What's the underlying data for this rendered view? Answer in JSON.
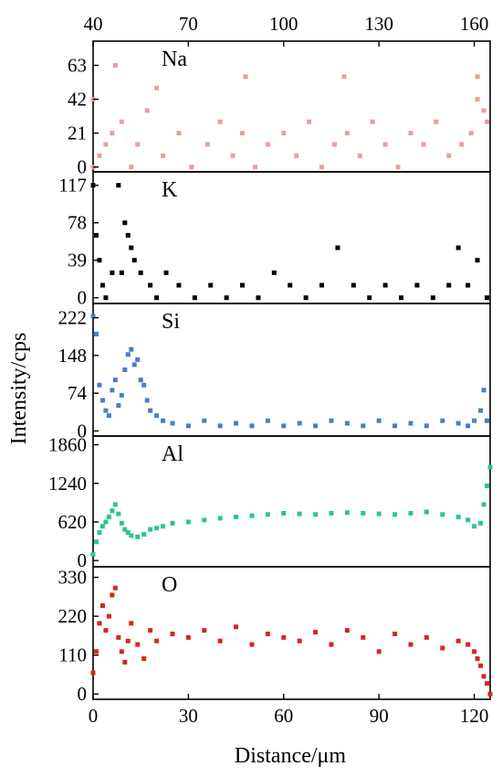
{
  "chart_data": {
    "type": "scatter",
    "title": "",
    "xlabel": "Distance/μm",
    "ylabel": "Intensity/cps",
    "xlim": [
      0,
      125
    ],
    "x_ticks": [
      "0",
      "30",
      "60",
      "90",
      "120"
    ],
    "top_axis_ticks": [
      "40",
      "70",
      "100",
      "130",
      "160"
    ],
    "panels": [
      {
        "label": "Na",
        "color": "#e8a09a",
        "ylim": [
          -3,
          78
        ],
        "y_ticks": [
          "0",
          "21",
          "42",
          "63"
        ],
        "x": [
          0,
          2,
          4,
          6,
          9,
          12,
          14,
          17,
          22,
          27,
          31,
          36,
          40,
          44,
          47,
          51,
          55,
          60,
          64,
          68,
          72,
          76,
          80,
          84,
          88,
          92,
          96,
          100,
          104,
          108,
          112,
          116,
          119,
          121,
          123,
          124,
          0,
          7,
          20,
          48,
          79,
          121
        ],
        "y": [
          0,
          7,
          14,
          21,
          28,
          0,
          14,
          35,
          7,
          21,
          0,
          14,
          28,
          7,
          21,
          0,
          14,
          21,
          7,
          28,
          0,
          14,
          21,
          7,
          28,
          14,
          0,
          21,
          14,
          28,
          7,
          14,
          21,
          42,
          35,
          28,
          42,
          63,
          49,
          56,
          56,
          56
        ]
      },
      {
        "label": "K",
        "color": "#000000",
        "ylim": [
          -6,
          131
        ],
        "y_ticks": [
          "0",
          "39",
          "78",
          "117"
        ],
        "x": [
          0,
          1,
          2,
          3,
          4,
          6,
          8,
          9,
          10,
          11,
          12,
          13,
          15,
          18,
          20,
          23,
          27,
          32,
          37,
          42,
          47,
          52,
          57,
          62,
          67,
          72,
          77,
          82,
          87,
          92,
          97,
          102,
          107,
          112,
          115,
          118,
          121,
          124
        ],
        "y": [
          117,
          65,
          39,
          13,
          0,
          26,
          117,
          26,
          78,
          65,
          52,
          39,
          26,
          13,
          0,
          26,
          13,
          0,
          13,
          0,
          13,
          0,
          26,
          13,
          0,
          13,
          52,
          13,
          0,
          13,
          0,
          13,
          0,
          13,
          52,
          13,
          39,
          0
        ]
      },
      {
        "label": "Si",
        "color": "#4a7fc0",
        "ylim": [
          -10,
          250
        ],
        "y_ticks": [
          "0",
          "74",
          "148",
          "222"
        ],
        "x": [
          0,
          1,
          2,
          3,
          4,
          5,
          6,
          7,
          8,
          9,
          10,
          11,
          12,
          13,
          14,
          15,
          16,
          17,
          18,
          20,
          22,
          25,
          30,
          35,
          40,
          45,
          50,
          55,
          60,
          65,
          70,
          75,
          80,
          85,
          90,
          95,
          100,
          105,
          110,
          115,
          118,
          120,
          122,
          123,
          124
        ],
        "y": [
          225,
          190,
          90,
          60,
          40,
          30,
          80,
          100,
          50,
          70,
          120,
          150,
          160,
          130,
          140,
          100,
          90,
          60,
          40,
          30,
          20,
          15,
          10,
          20,
          10,
          15,
          10,
          20,
          10,
          15,
          10,
          20,
          15,
          10,
          20,
          10,
          15,
          10,
          20,
          15,
          10,
          20,
          40,
          80,
          20
        ]
      },
      {
        "label": "Al",
        "color": "#2ec48d",
        "ylim": [
          -100,
          2000
        ],
        "y_ticks": [
          "0",
          "620",
          "1240",
          "1860"
        ],
        "x": [
          0,
          1,
          2,
          3,
          4,
          5,
          6,
          7,
          8,
          9,
          10,
          11,
          12,
          14,
          16,
          18,
          20,
          22,
          25,
          30,
          35,
          40,
          45,
          50,
          55,
          60,
          65,
          70,
          75,
          80,
          85,
          90,
          95,
          100,
          105,
          110,
          115,
          118,
          120,
          122,
          123,
          124,
          125
        ],
        "y": [
          100,
          300,
          450,
          550,
          620,
          700,
          800,
          900,
          750,
          600,
          500,
          450,
          400,
          380,
          420,
          500,
          520,
          550,
          600,
          620,
          650,
          680,
          700,
          720,
          740,
          760,
          750,
          740,
          760,
          770,
          760,
          750,
          740,
          760,
          780,
          740,
          700,
          650,
          550,
          600,
          900,
          1200,
          1500
        ]
      },
      {
        "label": "O",
        "color": "#d9251f",
        "ylim": [
          -15,
          360
        ],
        "y_ticks": [
          "0",
          "110",
          "220",
          "330"
        ],
        "x": [
          0,
          1,
          2,
          3,
          4,
          5,
          6,
          7,
          8,
          9,
          10,
          11,
          12,
          14,
          16,
          18,
          20,
          25,
          30,
          35,
          40,
          45,
          50,
          55,
          60,
          65,
          70,
          75,
          80,
          85,
          90,
          95,
          100,
          105,
          110,
          115,
          118,
          120,
          121,
          122,
          123,
          124,
          125
        ],
        "y": [
          60,
          120,
          200,
          250,
          180,
          220,
          280,
          300,
          160,
          120,
          90,
          150,
          200,
          140,
          100,
          180,
          150,
          170,
          160,
          180,
          150,
          190,
          140,
          170,
          160,
          150,
          175,
          140,
          180,
          160,
          120,
          170,
          140,
          160,
          130,
          150,
          140,
          120,
          100,
          80,
          50,
          30,
          0
        ]
      }
    ]
  }
}
